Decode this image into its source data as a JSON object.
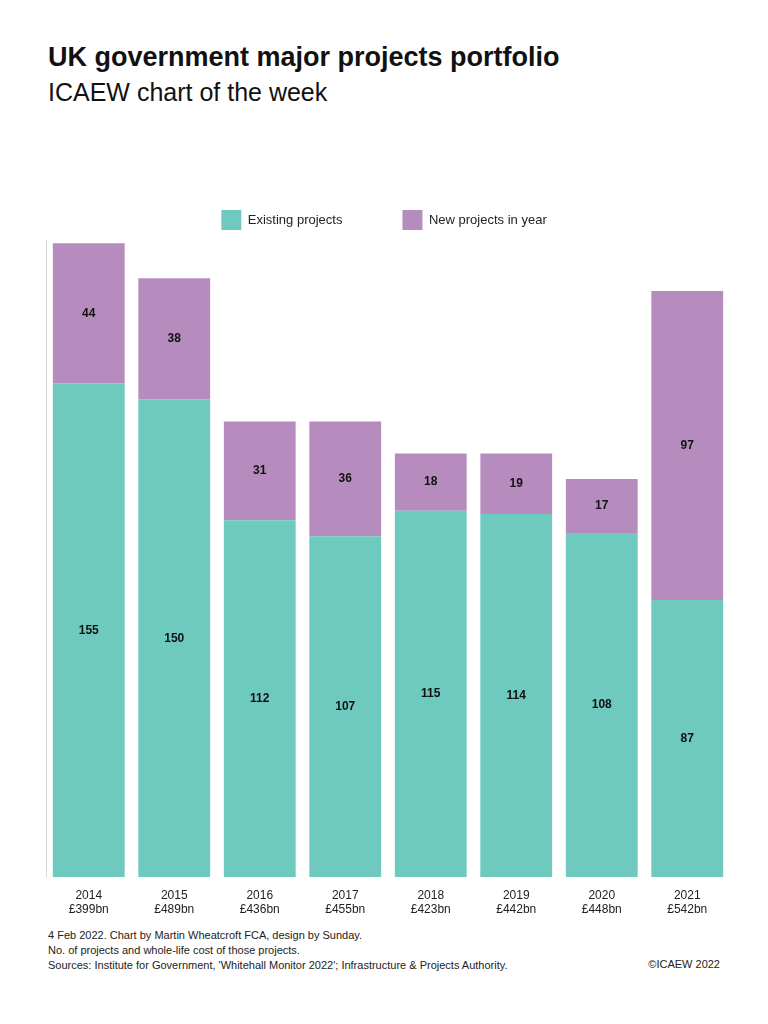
{
  "chart_data": {
    "type": "bar",
    "stacked": true,
    "title": "UK government major projects portfolio",
    "subtitle": "ICAEW chart of the week",
    "categories": [
      [
        "2014",
        "£399bn"
      ],
      [
        "2015",
        "£489bn"
      ],
      [
        "2016",
        "£436bn"
      ],
      [
        "2017",
        "£455bn"
      ],
      [
        "2018",
        "£423bn"
      ],
      [
        "2019",
        "£442bn"
      ],
      [
        "2020",
        "£448bn"
      ],
      [
        "2021",
        "£542bn"
      ]
    ],
    "series": [
      {
        "name": "Existing projects",
        "color": "#6ec9bf",
        "values": [
          155,
          150,
          112,
          107,
          115,
          114,
          108,
          87
        ]
      },
      {
        "name": "New projects in year",
        "color": "#b68cbf",
        "values": [
          44,
          38,
          31,
          36,
          18,
          19,
          17,
          97
        ]
      }
    ],
    "ylim": [
      0,
      200
    ],
    "grid": false,
    "legend": "top",
    "data_labels": true,
    "tick_labels": "x",
    "footnotes": [
      "4 Feb 2022.   Chart by Martin Wheatcroft FCA, design by Sunday.",
      "No. of projects and whole-life cost of those projects.",
      "Sources: Institute for Government, 'Whitehall Monitor 2022'; Infrastructure & Projects Authority."
    ],
    "copyright": "©ICAEW 2022"
  }
}
